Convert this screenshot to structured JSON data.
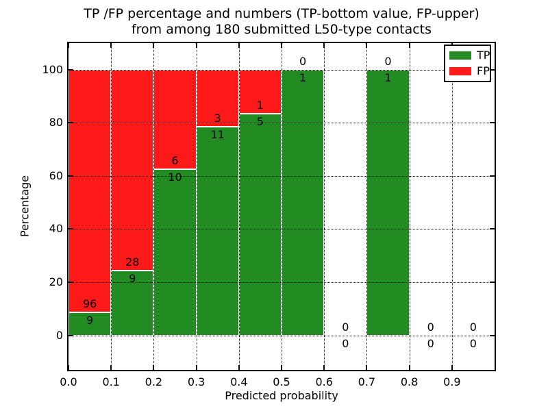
{
  "chart_data": {
    "type": "bar",
    "stacked": true,
    "percent_normalized": true,
    "title_line1": "TP /FP percentage and numbers (TP-bottom value, FP-upper)",
    "title_line2": "from among 180 submitted L50-type contacts",
    "xlabel": "Predicted probability",
    "ylabel": "Percentage",
    "total_submitted": 180,
    "xlim": [
      0.0,
      1.0
    ],
    "ylim": [
      -13,
      110
    ],
    "bin_width": 0.1,
    "x_ticks": [
      0.0,
      0.1,
      0.2,
      0.3,
      0.4,
      0.5,
      0.6,
      0.7,
      0.8,
      0.9
    ],
    "x_tick_labels": [
      "0.0",
      "0.1",
      "0.2",
      "0.3",
      "0.4",
      "0.5",
      "0.6",
      "0.7",
      "0.8",
      "0.9"
    ],
    "y_ticks": [
      0,
      20,
      40,
      60,
      80,
      100
    ],
    "y_tick_labels": [
      "0",
      "20",
      "40",
      "60",
      "80",
      "100"
    ],
    "grid": "dotted",
    "bins": [
      {
        "x_start": 0.0,
        "x_end": 0.1,
        "tp": 9,
        "fp": 96
      },
      {
        "x_start": 0.1,
        "x_end": 0.2,
        "tp": 9,
        "fp": 28
      },
      {
        "x_start": 0.2,
        "x_end": 0.3,
        "tp": 10,
        "fp": 6
      },
      {
        "x_start": 0.3,
        "x_end": 0.4,
        "tp": 11,
        "fp": 3
      },
      {
        "x_start": 0.4,
        "x_end": 0.5,
        "tp": 5,
        "fp": 1
      },
      {
        "x_start": 0.5,
        "x_end": 0.6,
        "tp": 1,
        "fp": 0
      },
      {
        "x_start": 0.6,
        "x_end": 0.7,
        "tp": 0,
        "fp": 0
      },
      {
        "x_start": 0.7,
        "x_end": 0.8,
        "tp": 1,
        "fp": 0
      },
      {
        "x_start": 0.8,
        "x_end": 0.9,
        "tp": 0,
        "fp": 0
      },
      {
        "x_start": 0.9,
        "x_end": 1.0,
        "tp": 0,
        "fp": 0
      }
    ],
    "series": [
      {
        "name": "TP",
        "color": "#228b22",
        "values": [
          9,
          9,
          10,
          11,
          5,
          1,
          0,
          1,
          0,
          0
        ]
      },
      {
        "name": "FP",
        "color": "#ff1a1a",
        "values": [
          96,
          28,
          6,
          3,
          1,
          0,
          0,
          0,
          0,
          0
        ]
      }
    ],
    "legend": {
      "position": "upper right",
      "entries": [
        {
          "label": "TP",
          "color": "#228b22"
        },
        {
          "label": "FP",
          "color": "#ff1a1a"
        }
      ]
    },
    "colors": {
      "tp": "#228b22",
      "fp": "#ff1a1a",
      "grid": "#111111",
      "axes": "#000000",
      "background": "#ffffff"
    }
  }
}
